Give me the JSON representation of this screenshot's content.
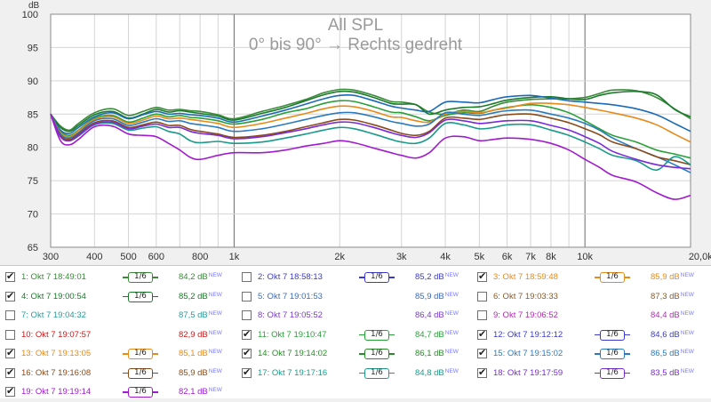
{
  "chart_data": {
    "type": "line",
    "title": "All SPL",
    "subtitle": "0° bis 90° → Rechts gedreht",
    "ylabel": "dB",
    "x_scale": "log",
    "xlim": [
      300,
      20000
    ],
    "ylim": [
      65,
      100
    ],
    "x_ticks": [
      300,
      400,
      500,
      600,
      800,
      1000,
      2000,
      3000,
      4000,
      5000,
      6000,
      7000,
      8000,
      10000,
      20000
    ],
    "x_tick_labels": [
      "300",
      "400",
      "500",
      "600",
      "800",
      "1k",
      "2k",
      "3k",
      "4k",
      "5k",
      "6k",
      "7k",
      "8k",
      "10k",
      "20,0kHz"
    ],
    "y_ticks": [
      65,
      70,
      75,
      80,
      85,
      90,
      95,
      100
    ],
    "y_tick_labels": [
      "65",
      "70",
      "75",
      "80",
      "85",
      "90",
      "95",
      "100"
    ],
    "grid": true,
    "x": [
      300,
      320,
      340,
      360,
      400,
      450,
      500,
      550,
      600,
      650,
      700,
      750,
      800,
      900,
      1000,
      1200,
      1400,
      1600,
      1800,
      2000,
      2200,
      2500,
      2800,
      3000,
      3300,
      3600,
      4000,
      4500,
      5000,
      5500,
      6000,
      7000,
      8000,
      9000,
      10000,
      11000,
      12000,
      14000,
      16000,
      18000,
      20000
    ],
    "series": [
      {
        "id": 1,
        "color": "#3a8a3a",
        "values": [
          85.0,
          83.2,
          82.6,
          83.6,
          85.2,
          85.8,
          84.8,
          85.4,
          86.0,
          85.6,
          85.7,
          85.5,
          85.4,
          84.9,
          84.3,
          85.4,
          86.3,
          87.2,
          88.2,
          88.7,
          88.6,
          87.8,
          86.9,
          86.8,
          86.4,
          85.3,
          85.0,
          85.6,
          85.4,
          86.2,
          86.8,
          87.2,
          87.3,
          87.3,
          87.5,
          88.1,
          88.6,
          88.5,
          87.5,
          85.8,
          84.3
        ]
      },
      {
        "id": 4,
        "color": "#1a7a2a",
        "values": [
          85.0,
          83.0,
          82.4,
          83.3,
          84.9,
          85.4,
          84.4,
          85.0,
          85.7,
          85.3,
          85.5,
          85.3,
          85.1,
          84.7,
          84.1,
          85.1,
          86.0,
          87.0,
          87.9,
          88.4,
          88.3,
          87.5,
          86.6,
          86.5,
          86.4,
          85.0,
          85.6,
          86.0,
          86.1,
          86.6,
          87.1,
          87.5,
          87.6,
          87.3,
          87.2,
          87.8,
          88.2,
          88.4,
          87.9,
          85.7,
          84.6
        ]
      },
      {
        "id": 11,
        "color": "#2aa03a",
        "values": [
          85.0,
          82.4,
          81.8,
          82.6,
          84.4,
          84.8,
          83.8,
          84.4,
          85.0,
          84.6,
          84.8,
          84.5,
          84.4,
          84.0,
          83.5,
          84.2,
          85.2,
          85.8,
          86.6,
          87.0,
          86.9,
          86.1,
          85.3,
          85.2,
          84.6,
          84.0,
          84.8,
          85.2,
          85.1,
          85.6,
          86.0,
          86.4,
          86.0,
          85.2,
          84.0,
          82.8,
          81.8,
          80.8,
          79.6,
          79.0,
          78.4
        ]
      },
      {
        "id": 12,
        "color": "#1a6ab8",
        "values": [
          85.0,
          82.6,
          82.1,
          83.0,
          84.6,
          85.2,
          84.3,
          84.9,
          85.4,
          85.0,
          85.1,
          84.9,
          84.8,
          84.4,
          83.8,
          84.7,
          85.6,
          86.5,
          87.3,
          87.8,
          87.8,
          87.0,
          86.2,
          85.9,
          85.6,
          85.4,
          86.8,
          86.8,
          86.7,
          87.2,
          87.6,
          87.8,
          87.4,
          87.0,
          86.8,
          86.6,
          86.4,
          85.8,
          84.9,
          83.6,
          82.4
        ]
      },
      {
        "id": 13,
        "color": "#e88a1a",
        "values": [
          85.0,
          82.2,
          81.6,
          82.5,
          84.2,
          84.6,
          83.6,
          84.1,
          84.7,
          84.3,
          84.4,
          84.2,
          84.0,
          83.6,
          83.0,
          83.6,
          84.4,
          85.1,
          85.8,
          86.2,
          86.1,
          85.4,
          84.6,
          84.5,
          84.0,
          83.8,
          85.0,
          85.4,
          85.2,
          85.6,
          85.9,
          86.6,
          86.6,
          86.4,
          86.0,
          85.6,
          85.2,
          84.4,
          83.4,
          82.0,
          80.8
        ]
      },
      {
        "id": 15,
        "color": "#2a7ac0",
        "values": [
          85.0,
          82.0,
          81.4,
          82.2,
          84.0,
          84.3,
          83.3,
          83.8,
          84.3,
          83.9,
          84.0,
          83.6,
          83.4,
          83.0,
          82.4,
          82.8,
          83.5,
          84.2,
          84.8,
          85.2,
          85.2,
          84.6,
          83.9,
          83.6,
          83.2,
          83.5,
          85.2,
          85.0,
          84.8,
          85.2,
          85.5,
          85.6,
          85.0,
          84.4,
          83.6,
          82.6,
          81.4,
          79.8,
          78.6,
          77.4,
          76.2
        ]
      },
      {
        "id": 16,
        "color": "#8a4a1a",
        "values": [
          85.0,
          81.8,
          81.2,
          82.0,
          83.7,
          84.0,
          83.0,
          83.4,
          83.8,
          83.3,
          83.3,
          82.7,
          82.4,
          82.0,
          81.5,
          81.8,
          82.4,
          83.1,
          83.7,
          84.2,
          84.1,
          83.4,
          82.6,
          82.1,
          81.8,
          82.4,
          84.4,
          84.4,
          84.2,
          84.6,
          84.9,
          85.0,
          84.4,
          83.7,
          82.8,
          81.9,
          80.8,
          79.8,
          78.6,
          78.0,
          77.4
        ]
      },
      {
        "id": 17,
        "color": "#1a9a8a",
        "values": [
          85.0,
          81.6,
          81.0,
          81.7,
          83.4,
          83.6,
          82.6,
          82.9,
          83.1,
          82.4,
          82.0,
          81.0,
          80.7,
          80.9,
          80.6,
          80.8,
          81.4,
          82.0,
          82.6,
          83.0,
          82.8,
          82.0,
          81.2,
          80.8,
          80.6,
          81.4,
          83.6,
          83.4,
          82.8,
          83.0,
          83.4,
          83.4,
          82.6,
          81.8,
          80.8,
          79.8,
          78.8,
          78.0,
          76.6,
          78.6,
          77.4
        ]
      },
      {
        "id": 18,
        "color": "#7a2ad8",
        "values": [
          85.0,
          81.6,
          81.0,
          81.8,
          83.5,
          83.8,
          82.8,
          83.2,
          83.5,
          83.0,
          83.0,
          82.4,
          82.1,
          81.8,
          81.3,
          81.6,
          82.2,
          82.8,
          83.4,
          83.8,
          83.7,
          83.0,
          82.2,
          81.8,
          81.5,
          82.2,
          84.1,
          84.0,
          83.6,
          83.8,
          84.0,
          84.0,
          83.3,
          82.6,
          81.6,
          80.6,
          79.4,
          78.2,
          77.4,
          77.0,
          76.8
        ]
      },
      {
        "id": 19,
        "color": "#a21ad0",
        "values": [
          85.0,
          81.0,
          80.4,
          81.2,
          83.1,
          83.2,
          82.0,
          81.8,
          81.6,
          80.6,
          79.6,
          78.5,
          78.2,
          78.8,
          79.2,
          79.2,
          79.6,
          80.2,
          80.6,
          81.0,
          80.7,
          79.9,
          79.2,
          78.8,
          78.4,
          79.2,
          81.4,
          81.6,
          81.0,
          81.2,
          81.4,
          81.2,
          80.6,
          79.6,
          78.2,
          77.0,
          75.8,
          74.8,
          73.2,
          72.2,
          72.8
        ]
      }
    ]
  },
  "legend": {
    "new_label": "NEW",
    "smooth_label": "1/6",
    "items": [
      {
        "label": "1: Okt 7 18:49:01",
        "value": "84,2 dB",
        "checked": true,
        "smooth": true,
        "color": "#3a8a3a"
      },
      {
        "label": "2: Okt 7 18:58:13",
        "value": "85,2 dB",
        "checked": false,
        "smooth": true,
        "color": "#3a3ad0"
      },
      {
        "label": "3: Okt 7 18:59:48",
        "value": "85,9 dB",
        "checked": true,
        "smooth": true,
        "color": "#e88a1a"
      },
      {
        "label": "4: Okt 7 19:00:54",
        "value": "85,2 dB",
        "checked": true,
        "smooth": true,
        "color": "#1a7a2a"
      },
      {
        "label": "5: Okt 7 19:01:53",
        "value": "85,9 dB",
        "checked": false,
        "smooth": false,
        "color": "#3a6ac0"
      },
      {
        "label": "6: Okt 7 19:03:33",
        "value": "87,3 dB",
        "checked": false,
        "smooth": false,
        "color": "#8a5a2a"
      },
      {
        "label": "7: Okt 7 19:04:32",
        "value": "87,5 dB",
        "checked": false,
        "smooth": false,
        "color": "#2a9a9a"
      },
      {
        "label": "8: Okt 7 19:05:52",
        "value": "86,4 dB",
        "checked": false,
        "smooth": false,
        "color": "#7a3ad0"
      },
      {
        "label": "9: Okt 7 19:06:52",
        "value": "84,4 dB",
        "checked": false,
        "smooth": false,
        "color": "#b02ab0"
      },
      {
        "label": "10: Okt 7 19:07:57",
        "value": "82,9 dB",
        "checked": false,
        "smooth": false,
        "color": "#c81a1a"
      },
      {
        "label": "11: Okt 7 19:10:47",
        "value": "84,7 dB",
        "checked": true,
        "smooth": true,
        "color": "#2aa03a"
      },
      {
        "label": "12: Okt 7 19:12:12",
        "value": "84,6 dB",
        "checked": true,
        "smooth": true,
        "color": "#3a3ad0"
      },
      {
        "label": "13: Okt 7 19:13:05",
        "value": "85,1 dB",
        "checked": true,
        "smooth": true,
        "color": "#e88a1a"
      },
      {
        "label": "14: Okt 7 19:14:02",
        "value": "86,1 dB",
        "checked": true,
        "smooth": true,
        "color": "#2a8a2a"
      },
      {
        "label": "15: Okt 7 19:15:02",
        "value": "86,5 dB",
        "checked": true,
        "smooth": true,
        "color": "#2a7ac0"
      },
      {
        "label": "16: Okt 7 19:16:08",
        "value": "85,9 dB",
        "checked": true,
        "smooth": true,
        "color": "#8a4a1a"
      },
      {
        "label": "17: Okt 7 19:17:16",
        "value": "84,8 dB",
        "checked": true,
        "smooth": true,
        "color": "#1a9a8a"
      },
      {
        "label": "18: Okt 7 19:17:59",
        "value": "83,5 dB",
        "checked": true,
        "smooth": true,
        "color": "#7a2ad8"
      },
      {
        "label": "19: Okt 7 19:19:14",
        "value": "82,1 dB",
        "checked": true,
        "smooth": true,
        "color": "#a21ad0"
      }
    ]
  },
  "colors": {
    "plot_bg": "#ffffff",
    "grid": "#d4d4d4",
    "grid_major": "#6a6a6a",
    "title": "#9a9a9a"
  }
}
